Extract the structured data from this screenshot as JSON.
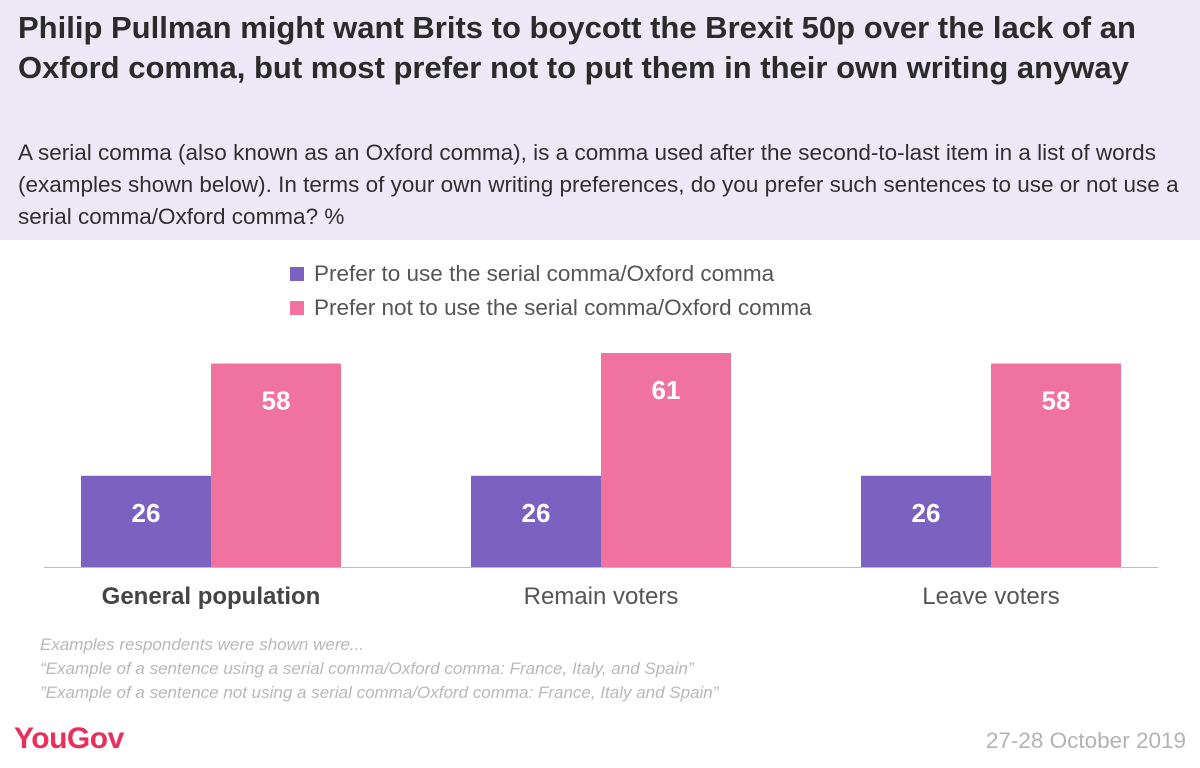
{
  "header": {
    "title": "Philip Pullman might want Brits to boycott the Brexit 50p over the lack of an Oxford comma, but most prefer not to put them in their own writing anyway",
    "subtitle": "A serial comma (also known as an Oxford comma), is a comma used after the second-to-last item in a list of words (examples shown below). In terms of your own writing preferences, do you prefer such sentences to use or not use a serial comma/Oxford comma? %"
  },
  "colors": {
    "header_bg": "#ece8f5",
    "use": "#7b61c0",
    "not_use": "#f0729f",
    "brand": "#e8305a"
  },
  "legend": [
    {
      "label": "Prefer to use the serial comma/Oxford comma",
      "color": "#7b61c0"
    },
    {
      "label": "Prefer not to use the serial comma/Oxford comma",
      "color": "#f0729f"
    }
  ],
  "chart_data": {
    "type": "bar",
    "categories": [
      "General population",
      "Remain voters",
      "Leave voters"
    ],
    "series": [
      {
        "name": "Prefer to use the serial comma/Oxford comma",
        "values": [
          26,
          26,
          26
        ],
        "color": "#7b61c0"
      },
      {
        "name": "Prefer not to use the serial comma/Oxford comma",
        "values": [
          58,
          61,
          58
        ],
        "color": "#f0729f"
      }
    ],
    "ylim": [
      0,
      61
    ],
    "grid": false,
    "legend_position": "top"
  },
  "notes": [
    "Examples respondents were shown were...",
    "“Example of a sentence using a serial comma/Oxford comma: France, Italy, and Spain”",
    "”Example of a sentence not using a serial comma/Oxford comma: France, Italy and Spain”"
  ],
  "footer": {
    "logo": "YouGov",
    "date": "27-28 October 2019"
  }
}
